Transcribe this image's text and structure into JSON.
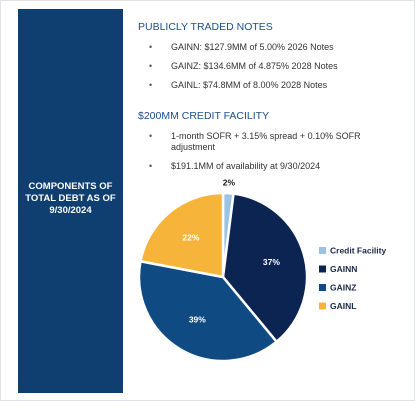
{
  "sidebar": {
    "title": "COMPONENTS OF TOTAL DEBT AS OF 9/30/2024"
  },
  "sections": [
    {
      "heading": "PUBLICLY TRADED NOTES",
      "bullets": [
        "GAINN: $127.9MM of 5.00% 2026 Notes",
        "GAINZ: $134.6MM of 4.875% 2028 Notes",
        "GAINL: $74.8MM of 8.00% 2028 Notes"
      ]
    },
    {
      "heading": "$200MM CREDIT FACILITY",
      "bullets": [
        "1-month SOFR + 3.15% spread + 0.10% SOFR adjustment",
        "$191.1MM of availability at 9/30/2024"
      ]
    }
  ],
  "chart_data": {
    "type": "pie",
    "categories": [
      "Credit Facility",
      "GAINN",
      "GAINZ",
      "GAINL"
    ],
    "values": [
      2,
      37,
      39,
      22
    ],
    "value_labels": [
      "2%",
      "37%",
      "39%",
      "22%"
    ],
    "colors": [
      "#9cc3e2",
      "#0b2452",
      "#0f4b82",
      "#f6b53a"
    ]
  }
}
